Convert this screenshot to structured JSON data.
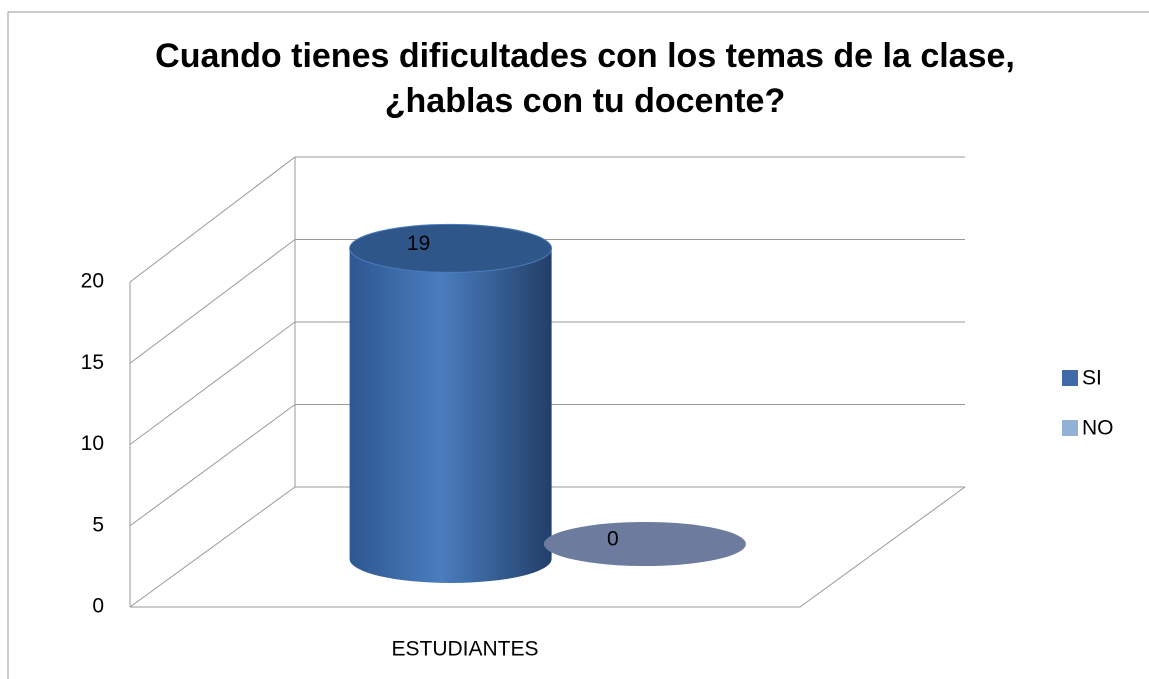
{
  "chart_data": {
    "type": "bar3d",
    "title": "Cuando tienes dificultades con los temas de la clase, ¿hablas con tu docente?",
    "categories": [
      "ESTUDIANTES"
    ],
    "series": [
      {
        "name": "SI",
        "color": "#3e6ba8",
        "values": [
          19
        ]
      },
      {
        "name": "NO",
        "color": "#93b0d6",
        "values": [
          0
        ]
      }
    ],
    "ylim": [
      0,
      20
    ],
    "yticks": [
      0,
      5,
      10,
      15,
      20
    ],
    "grid": true,
    "legend": "right"
  }
}
